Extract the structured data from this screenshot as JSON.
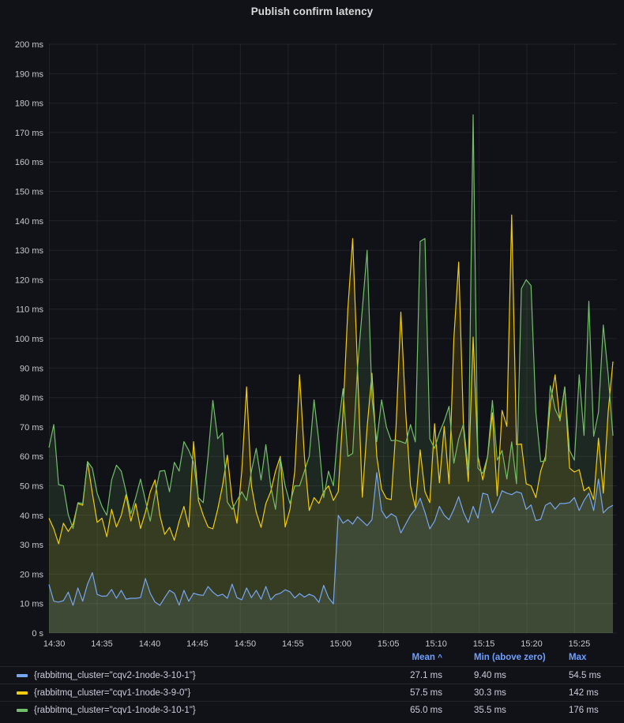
{
  "title": "Publish confirm latency",
  "panel_background": "#111217",
  "chart_data": {
    "type": "line",
    "unit": "milliseconds",
    "x_start": "14:30",
    "x_interval_seconds": 30,
    "x_tick_labels": [
      "14:30",
      "14:35",
      "14:40",
      "14:45",
      "14:50",
      "14:55",
      "15:00",
      "15:05",
      "15:10",
      "15:15",
      "15:20",
      "15:25"
    ],
    "y_tick_labels": [
      "0 s",
      "10 ms",
      "20 ms",
      "30 ms",
      "40 ms",
      "50 ms",
      "60 ms",
      "70 ms",
      "80 ms",
      "90 ms",
      "100 ms",
      "110 ms",
      "120 ms",
      "130 ms",
      "140 ms",
      "150 ms",
      "160 ms",
      "170 ms",
      "180 ms",
      "190 ms",
      "200 ms"
    ],
    "ylim": [
      0,
      200
    ],
    "grid": true,
    "fill_opacity": 0.13,
    "series": [
      {
        "name": "{rabbitmq_cluster=\"cqv2-1node-3-10-1\"}",
        "color": "#76a6f2",
        "values": [
          16.5,
          10.8,
          10.5,
          11,
          13.9,
          9.4,
          15.3,
          10.8,
          16.6,
          20.5,
          13.1,
          12.5,
          12.6,
          14.8,
          11.8,
          14.5,
          11.5,
          11.8,
          11.8,
          12,
          18.5,
          13.5,
          10.5,
          9.4,
          12,
          14.5,
          13.5,
          9.5,
          14.5,
          10.8,
          13.5,
          13,
          12.8,
          15.8,
          13.9,
          12.6,
          13.2,
          11.8,
          16.6,
          12,
          11.3,
          15.3,
          12,
          14.5,
          11.5,
          15.8,
          11.3,
          13,
          13.5,
          14.7,
          14,
          11.9,
          13.4,
          12.2,
          13.2,
          12.5,
          10.4,
          16.2,
          12,
          9.9,
          40,
          37.3,
          38.5,
          37,
          39.5,
          38,
          36.5,
          38.5,
          54.5,
          41.6,
          39,
          40.5,
          39.5,
          34,
          37,
          40,
          42,
          45.8,
          41,
          35.4,
          38,
          43,
          40,
          38.5,
          42,
          46.3,
          41,
          37.5,
          43,
          39,
          47.5,
          47,
          40.8,
          44,
          48.3,
          47.5,
          47,
          48,
          47.5,
          42,
          43.5,
          38.2,
          38.6,
          43.4,
          44.3,
          42.1,
          44,
          44,
          44.3,
          46,
          41.6,
          45,
          47.5,
          41.6,
          52.3,
          40.8,
          42.5,
          43.4
        ]
      },
      {
        "name": "{rabbitmq_cluster=\"cqv1-1node-3-9-0\"}",
        "color": "#f2cc0c",
        "values": [
          39,
          35.4,
          30.3,
          37.3,
          34.5,
          37,
          44,
          43.4,
          58.2,
          47.5,
          37.6,
          39,
          32.7,
          42,
          36,
          40,
          47,
          38,
          44,
          35.5,
          41,
          48,
          52,
          40,
          33.5,
          35.9,
          31.5,
          38,
          43,
          36,
          65,
          45,
          40,
          36,
          35.4,
          42,
          50,
          60.4,
          45,
          37.3,
          55,
          83.6,
          50,
          41,
          35.9,
          44,
          48,
          55,
          60,
          36,
          42,
          55,
          87.7,
          60,
          41.6,
          46,
          44,
          48,
          50,
          45,
          48,
          75,
          110,
          134,
          90,
          46.1,
          70,
          88.2,
          60,
          48.8,
          45.7,
          45.3,
          70,
          109,
          75,
          50,
          42.6,
          62.2,
          48,
          44.3,
          71.1,
          51,
          70.2,
          50.7,
          100,
          126,
          70,
          51.5,
          100.5,
          60,
          52,
          60,
          74.8,
          46.6,
          75.6,
          70.2,
          142,
          64,
          64.2,
          50.7,
          50,
          46,
          55,
          60,
          78,
          87.7,
          72.1,
          83.6,
          56,
          54.7,
          55.5,
          48.3,
          49.6,
          45.3,
          66.2,
          47.5,
          75,
          92.2
        ]
      },
      {
        "name": "{rabbitmq_cluster=\"cqv1-1node-3-10-1\"}",
        "color": "#73bf69",
        "values": [
          63,
          70.8,
          50.4,
          50,
          40.2,
          35.5,
          44.3,
          44,
          58.2,
          56,
          47.5,
          43,
          40,
          52,
          57,
          55,
          48,
          40.5,
          46,
          52.3,
          45,
          38,
          47,
          55,
          55.2,
          48,
          58,
          55,
          65,
          62,
          58,
          46,
          44.3,
          60,
          79,
          66,
          68,
          44.5,
          42,
          45,
          48,
          45,
          55,
          62.7,
          52,
          64,
          50,
          42,
          59.5,
          50,
          44,
          50,
          50,
          55,
          60,
          79.2,
          65,
          46,
          55,
          50,
          70,
          83,
          60,
          61,
          90,
          110,
          130,
          80,
          65,
          79.2,
          70,
          65.3,
          65.5,
          65,
          64.4,
          70.8,
          64.9,
          133,
          134,
          66,
          62.7,
          68,
          72,
          77,
          57.7,
          66,
          71,
          55.5,
          176,
          56,
          54.2,
          60,
          79,
          58.7,
          62,
          52.3,
          64.9,
          50.7,
          117,
          120,
          118,
          75,
          58.2,
          58.5,
          84,
          76,
          72.5,
          83.6,
          62,
          58.7,
          87.7,
          67.1,
          112.7,
          66.8,
          75,
          104.6,
          88,
          67
        ]
      }
    ]
  },
  "legend": {
    "columns": [
      "Mean",
      "Min (above zero)",
      "Max"
    ],
    "sort_caret": "^",
    "rows": [
      {
        "label": "{rabbitmq_cluster=\"cqv2-1node-3-10-1\"}",
        "mean": "27.1 ms",
        "min": "9.40 ms",
        "max": "54.5 ms"
      },
      {
        "label": "{rabbitmq_cluster=\"cqv1-1node-3-9-0\"}",
        "mean": "57.5 ms",
        "min": "30.3 ms",
        "max": "142 ms"
      },
      {
        "label": "{rabbitmq_cluster=\"cqv1-1node-3-10-1\"}",
        "mean": "65.0 ms",
        "min": "35.5 ms",
        "max": "176 ms"
      }
    ]
  },
  "colors": {
    "grid_line": "rgba(204,204,220,0.09)",
    "axis_text": "#c7c8cd",
    "legend_header": "#6e9fff",
    "title_text": "#d8d9da"
  }
}
